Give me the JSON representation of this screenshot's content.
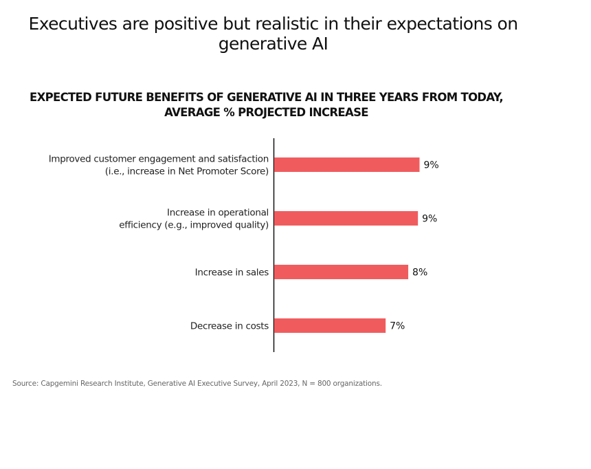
{
  "title": "Executives are positive but realistic in their expectations on\ngenerative AI",
  "chart_data": {
    "type": "bar",
    "orientation": "horizontal",
    "title": "EXPECTED FUTURE BENEFITS OF GENERATIVE AI IN THREE YEARS FROM TODAY,\nAVERAGE % PROJECTED INCREASE",
    "categories": [
      [
        "Improved customer engagement and satisfaction",
        "(i.e., increase in Net Promoter Score)"
      ],
      [
        "Increase in operational",
        "efficiency (e.g., improved quality)"
      ],
      [
        "Increase in sales"
      ],
      [
        "Decrease in costs"
      ]
    ],
    "values": [
      9.0,
      8.9,
      8.3,
      6.9
    ],
    "data_labels": [
      "9%",
      "9%",
      "8%",
      "7%"
    ],
    "xlabel": "",
    "ylabel": "",
    "grid": false,
    "bar_color": "#f05c5e"
  },
  "source": "Source: Capgemini Research Institute, Generative AI Executive Survey, April 2023, N = 800 organizations."
}
